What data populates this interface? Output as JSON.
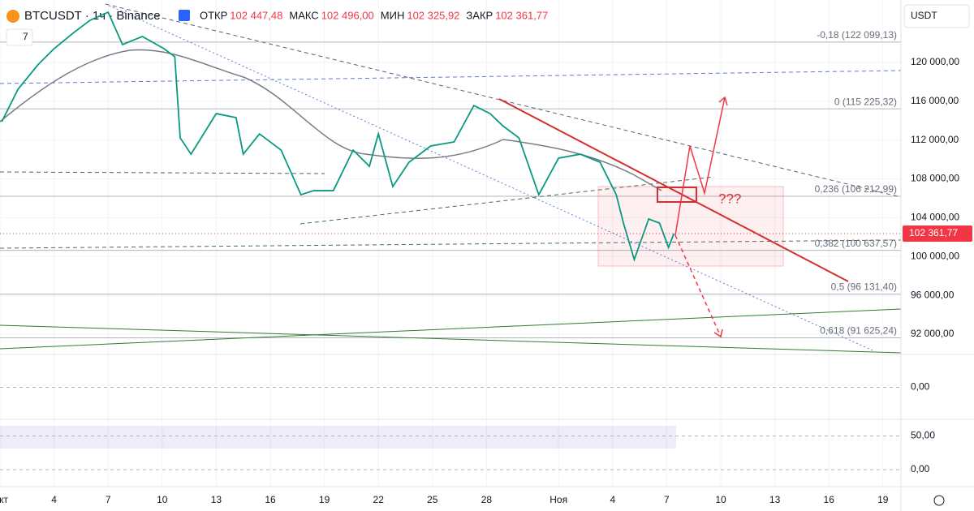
{
  "toolbar": {
    "symbol": "BTCUSDT · 1ч · Binance",
    "indicators": "7",
    "currency": "USDT",
    "fields": [
      {
        "name": "ОТКР",
        "value": "102 447,48"
      },
      {
        "name": "МАКС",
        "value": "102 496,00"
      },
      {
        "name": "МИН",
        "value": "102 325,92"
      },
      {
        "name": "ЗАКР",
        "value": "102 361,77"
      }
    ]
  },
  "chart_data": {
    "type": "line",
    "x": [
      0.1,
      1.0,
      2.1,
      3.0,
      4.1,
      5.0,
      6.0,
      6.8,
      7.9,
      9.1,
      9.7,
      10.0,
      10.6,
      12.0,
      13.1,
      13.5,
      14.4,
      15.6,
      16.7,
      17.4,
      18.5,
      19.6,
      20.5,
      21.0,
      21.8,
      22.7,
      23.9,
      25.2,
      26.3,
      27.2,
      27.9,
      28.8,
      29.9,
      31.0,
      32.2,
      33.3,
      34.2,
      34.6,
      35.2,
      36.0,
      36.6,
      37.1,
      37.4
    ],
    "series": [
      {
        "color": "#089981",
        "values": [
          113900,
          117240,
          119750,
          121420,
          123090,
          124350,
          125180,
          121840,
          122680,
          121420,
          120590,
          112230,
          110550,
          114730,
          114320,
          110550,
          112640,
          110970,
          106370,
          106790,
          106790,
          110970,
          109300,
          112640,
          107210,
          109720,
          111390,
          111810,
          115570,
          114730,
          113480,
          112230,
          106370,
          110140,
          110550,
          109720,
          106370,
          103450,
          99690,
          103870,
          103450,
          100940,
          102361.77
        ]
      }
    ],
    "xlim": [
      0,
      50
    ],
    "ylim": [
      90077,
      126437
    ],
    "xticks": [
      {
        "value": 0,
        "label": "кт"
      },
      {
        "value": 3,
        "label": "4"
      },
      {
        "value": 6,
        "label": "7"
      },
      {
        "value": 9,
        "label": "10"
      },
      {
        "value": 12,
        "label": "13"
      },
      {
        "value": 15,
        "label": "16"
      },
      {
        "value": 18,
        "label": "19"
      },
      {
        "value": 21,
        "label": "22"
      },
      {
        "value": 24,
        "label": "25"
      },
      {
        "value": 27,
        "label": "28"
      },
      {
        "value": 31,
        "label": "Ноя"
      },
      {
        "value": 34,
        "label": "4"
      },
      {
        "value": 37,
        "label": "7"
      },
      {
        "value": 40,
        "label": "10"
      },
      {
        "value": 43,
        "label": "13"
      },
      {
        "value": 46,
        "label": "16"
      },
      {
        "value": 49,
        "label": "19"
      }
    ],
    "yticks": [
      {
        "value": 92000,
        "label": "92 000,00"
      },
      {
        "value": 96000,
        "label": "96 000,00"
      },
      {
        "value": 100000,
        "label": "100 000,00"
      },
      {
        "value": 104000,
        "label": "104 000,00"
      },
      {
        "value": 108000,
        "label": "108 000,00"
      },
      {
        "value": 112000,
        "label": "112 000,00"
      },
      {
        "value": 116000,
        "label": "116 000,00"
      },
      {
        "value": 120000,
        "label": "120 000,00"
      }
    ],
    "fib_levels": [
      {
        "value": 122099.13,
        "label": "-0,18 (122 099,13)"
      },
      {
        "value": 115225.32,
        "label": "0 (115 225,32)"
      },
      {
        "value": 106212.99,
        "label": "0,236 (106 212,99)"
      },
      {
        "value": 100637.57,
        "label": "0,382 (100 637,57)"
      },
      {
        "value": 96131.4,
        "label": "0,5 (96 131,40)"
      },
      {
        "value": 91625.24,
        "label": "0,618 (91 625,24)"
      }
    ],
    "last_price": {
      "value": 102361.77,
      "label": "102 361,77"
    },
    "annotations": [
      "???"
    ],
    "grid": true,
    "panes": [
      {
        "yticks": [
          {
            "value": 0,
            "label": "0,00"
          }
        ]
      },
      {
        "yticks": [
          {
            "value": 50,
            "label": "50,00"
          }
        ]
      },
      {
        "yticks": [
          {
            "value": 0,
            "label": "0,00"
          }
        ]
      }
    ]
  }
}
